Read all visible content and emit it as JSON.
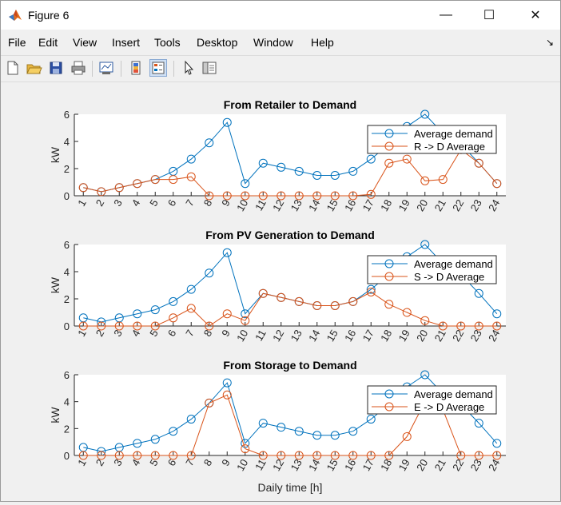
{
  "window": {
    "title": "Figure 6",
    "minimize_glyph": "—",
    "maximize_glyph": "☐",
    "close_glyph": "✕"
  },
  "menu": {
    "items": [
      "File",
      "Edit",
      "View",
      "Insert",
      "Tools",
      "Desktop",
      "Window",
      "Help"
    ],
    "dock_glyph": "↘"
  },
  "toolbar": {
    "icons": [
      "new-figure-icon",
      "open-file-icon",
      "save-icon",
      "print-icon",
      "link-plot-icon",
      "colorbar-icon",
      "legend-icon",
      "pointer-icon",
      "property-editor-icon"
    ]
  },
  "colors": {
    "series_blue": "#0072BD",
    "series_orange": "#D95319"
  },
  "chart_data": [
    {
      "type": "line",
      "title": "From Retailer to Demand",
      "xlabel": "",
      "ylabel": "kW",
      "x": [
        1,
        2,
        3,
        4,
        5,
        6,
        7,
        8,
        9,
        10,
        11,
        12,
        13,
        14,
        15,
        16,
        17,
        18,
        19,
        20,
        21,
        22,
        23,
        24
      ],
      "xlim": [
        0.5,
        24.5
      ],
      "ylim": [
        0,
        6
      ],
      "yticks": [
        0,
        2,
        4,
        6
      ],
      "legend_position": "top-right",
      "series": [
        {
          "name": "Average demand",
          "color": "#0072BD",
          "values": [
            0.6,
            0.3,
            0.6,
            0.9,
            1.2,
            1.8,
            2.7,
            3.9,
            5.4,
            0.9,
            2.4,
            2.1,
            1.8,
            1.5,
            1.5,
            1.8,
            2.7,
            3.8,
            5.1,
            6.0,
            4.6,
            3.8,
            2.4,
            0.9
          ]
        },
        {
          "name": "R -> D Average",
          "color": "#D95319",
          "values": [
            0.6,
            0.3,
            0.6,
            0.9,
            1.2,
            1.2,
            1.4,
            0,
            0,
            0,
            0,
            0,
            0,
            0,
            0,
            0,
            0.1,
            2.4,
            2.7,
            1.1,
            1.2,
            3.4,
            2.4,
            0.9
          ]
        }
      ]
    },
    {
      "type": "line",
      "title": "From PV Generation to Demand",
      "xlabel": "",
      "ylabel": "kW",
      "x": [
        1,
        2,
        3,
        4,
        5,
        6,
        7,
        8,
        9,
        10,
        11,
        12,
        13,
        14,
        15,
        16,
        17,
        18,
        19,
        20,
        21,
        22,
        23,
        24
      ],
      "xlim": [
        0.5,
        24.5
      ],
      "ylim": [
        0,
        6
      ],
      "yticks": [
        0,
        2,
        4,
        6
      ],
      "legend_position": "top-right",
      "series": [
        {
          "name": "Average demand",
          "color": "#0072BD",
          "values": [
            0.6,
            0.3,
            0.6,
            0.9,
            1.2,
            1.8,
            2.7,
            3.9,
            5.4,
            0.9,
            2.4,
            2.1,
            1.8,
            1.5,
            1.5,
            1.8,
            2.7,
            3.8,
            5.1,
            6.0,
            4.6,
            3.8,
            2.4,
            0.9
          ]
        },
        {
          "name": "S -> D Average",
          "color": "#D95319",
          "values": [
            0,
            0,
            0,
            0,
            0,
            0.6,
            1.3,
            0,
            0.9,
            0.4,
            2.4,
            2.1,
            1.8,
            1.5,
            1.5,
            1.8,
            2.5,
            1.6,
            1.0,
            0.4,
            0,
            0,
            0,
            0
          ]
        }
      ]
    },
    {
      "type": "line",
      "title": "From Storage to Demand",
      "xlabel": "Daily time [h]",
      "ylabel": "kW",
      "x": [
        1,
        2,
        3,
        4,
        5,
        6,
        7,
        8,
        9,
        10,
        11,
        12,
        13,
        14,
        15,
        16,
        17,
        18,
        19,
        20,
        21,
        22,
        23,
        24
      ],
      "xlim": [
        0.5,
        24.5
      ],
      "ylim": [
        0,
        6
      ],
      "yticks": [
        0,
        2,
        4,
        6
      ],
      "legend_position": "top-right",
      "series": [
        {
          "name": "Average demand",
          "color": "#0072BD",
          "values": [
            0.6,
            0.3,
            0.6,
            0.9,
            1.2,
            1.8,
            2.7,
            3.9,
            5.4,
            0.9,
            2.4,
            2.1,
            1.8,
            1.5,
            1.5,
            1.8,
            2.7,
            3.8,
            5.1,
            6.0,
            4.6,
            3.8,
            2.4,
            0.9
          ]
        },
        {
          "name": "E -> D Average",
          "color": "#D95319",
          "values": [
            0,
            0,
            0,
            0,
            0,
            0,
            0,
            3.9,
            4.5,
            0.5,
            0,
            0,
            0,
            0,
            0,
            0,
            0,
            0,
            1.4,
            4.0,
            3.4,
            0,
            0,
            0
          ]
        }
      ]
    }
  ]
}
